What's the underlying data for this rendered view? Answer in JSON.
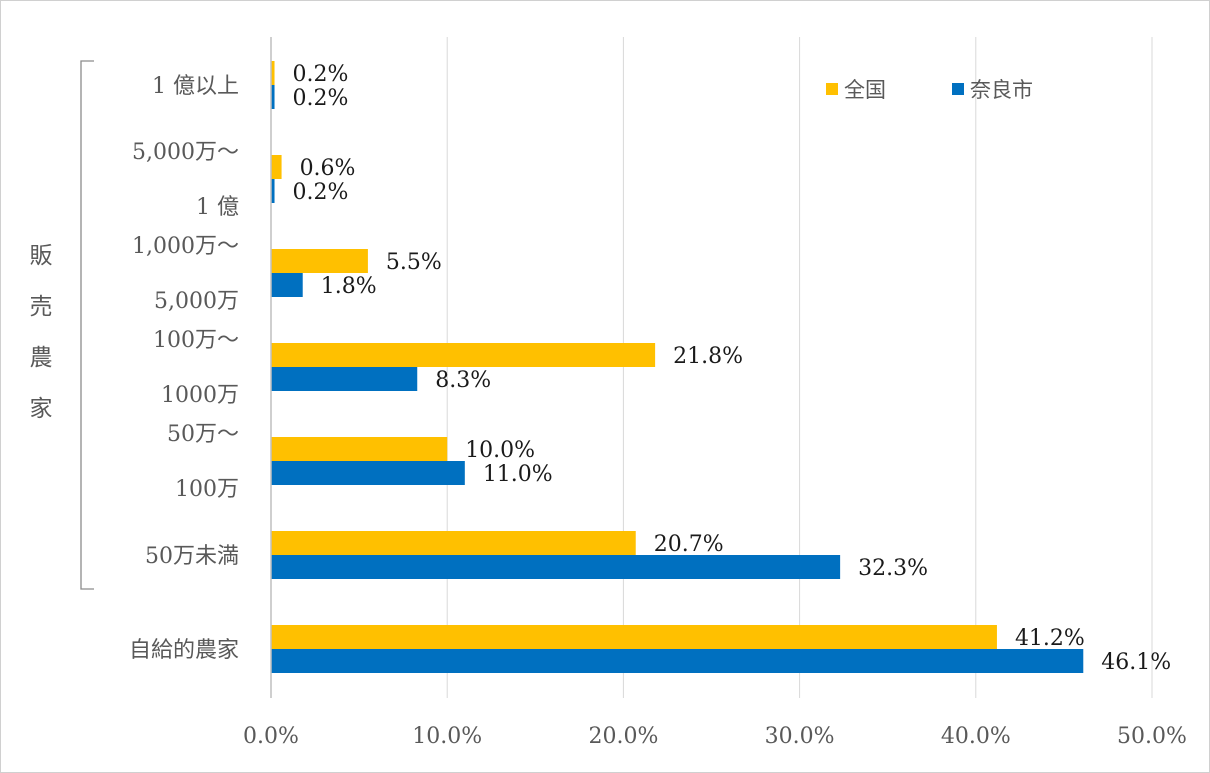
{
  "chart_data": {
    "type": "bar",
    "orientation": "horizontal",
    "categories": [
      {
        "lines": [
          "1 億以上"
        ]
      },
      {
        "lines": [
          "5,000万～",
          "1 億"
        ]
      },
      {
        "lines": [
          "1,000万～",
          "5,000万"
        ]
      },
      {
        "lines": [
          "100万～",
          "1000万"
        ]
      },
      {
        "lines": [
          "50万～",
          "100万"
        ]
      },
      {
        "lines": [
          "50万未満"
        ]
      },
      {
        "lines": [
          "自給的農家"
        ]
      }
    ],
    "series": [
      {
        "name": "全国",
        "color": "#FFC000",
        "values": [
          0.2,
          0.6,
          5.5,
          21.8,
          10.0,
          20.7,
          41.2
        ],
        "labels": [
          "0.2%",
          "0.6%",
          "5.5%",
          "21.8%",
          "10.0%",
          "20.7%",
          "41.2%"
        ]
      },
      {
        "name": "奈良市",
        "color": "#0070C0",
        "values": [
          0.2,
          0.2,
          1.8,
          8.3,
          11.0,
          32.3,
          46.1
        ],
        "labels": [
          "0.2%",
          "0.2%",
          "1.8%",
          "8.3%",
          "11.0%",
          "32.3%",
          "46.1%"
        ]
      }
    ],
    "xlim": [
      0,
      50
    ],
    "xticks": [
      0,
      10,
      20,
      30,
      40,
      50
    ],
    "xtick_labels": [
      "0.0%",
      "10.0%",
      "20.0%",
      "30.0%",
      "40.0%",
      "50.0%"
    ],
    "group_label": [
      "販",
      "売",
      "農",
      "家"
    ],
    "grid": true,
    "legend_position": "top-right"
  }
}
